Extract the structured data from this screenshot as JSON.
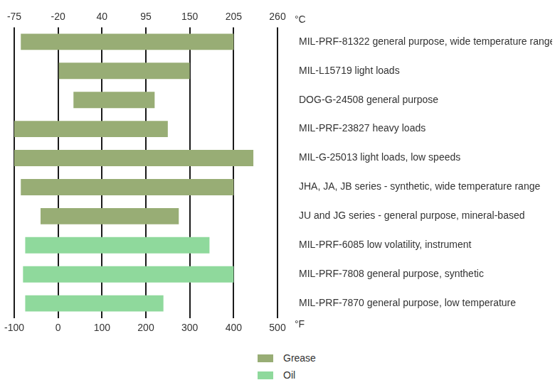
{
  "chart_data": {
    "type": "bar",
    "orientation": "horizontal",
    "categories": [
      "MIL-PRF-81322 general purpose, wide temperature range",
      "MIL-L15719 light loads",
      "DOG-G-24508 general purpose",
      "MIL-PRF-23827 heavy loads",
      "MIL-G-25013 light loads, low speeds",
      "JHA, JA, JB series - synthetic, wide temperature range",
      "JU and JG series - general purpose, mineral-based",
      "MIL-PRF-6085 low volatility, instrument",
      "MIL-PRF-7808 general purpose, synthetic",
      "MIL-PRF-7870 general purpose, low temperature"
    ],
    "series": [
      {
        "name": "Grease",
        "color": "#98ad75",
        "values": [
          [
            -85,
            400
          ],
          [
            0,
            300
          ],
          [
            35,
            220
          ],
          [
            -100,
            250
          ],
          [
            -100,
            445
          ],
          [
            -85,
            400
          ],
          [
            -40,
            275
          ],
          null,
          null,
          null
        ]
      },
      {
        "name": "Oil",
        "color": "#8fd99c",
        "values": [
          null,
          null,
          null,
          null,
          null,
          null,
          null,
          [
            -75,
            345
          ],
          [
            -80,
            400
          ],
          [
            -75,
            240
          ]
        ]
      }
    ],
    "x_label": "°F",
    "xlim": [
      -100,
      500
    ],
    "xticks": [
      -100,
      0,
      100,
      200,
      300,
      400,
      500
    ],
    "x2_label": "°C",
    "x2lim": [
      -100,
      500
    ],
    "x2ticks": [
      {
        "value": -100,
        "label": "-75"
      },
      {
        "value": 0,
        "label": "-20"
      },
      {
        "value": 100,
        "label": "40"
      },
      {
        "value": 200,
        "label": "95"
      },
      {
        "value": 300,
        "label": "150"
      },
      {
        "value": 400,
        "label": "205"
      },
      {
        "value": 500,
        "label": "260"
      }
    ],
    "grid": true,
    "legend": "bottom"
  }
}
